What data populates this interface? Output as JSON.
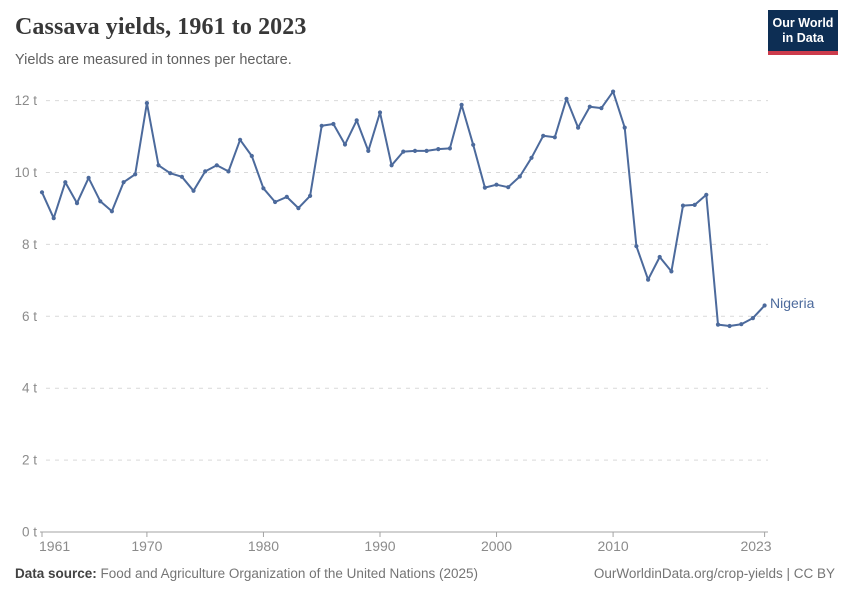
{
  "header": {
    "title": "Cassava yields, 1961 to 2023",
    "subtitle": "Yields are measured in tonnes per hectare.",
    "logo": {
      "line1": "Our World",
      "line2": "in Data"
    }
  },
  "chart_data": {
    "type": "line",
    "title": "Cassava yields, 1961 to 2023",
    "ylabel": "tonnes per hectare",
    "xlabel": "",
    "xlim": [
      1961,
      2023
    ],
    "ylim": [
      0,
      12
    ],
    "grid": "horizontal-dashed",
    "legend_position": "end-of-line-label",
    "xticks": [
      {
        "value": 1961,
        "label": "1961"
      },
      {
        "value": 1970,
        "label": "1970"
      },
      {
        "value": 1980,
        "label": "1980"
      },
      {
        "value": 1990,
        "label": "1990"
      },
      {
        "value": 2000,
        "label": "2000"
      },
      {
        "value": 2010,
        "label": "2010"
      },
      {
        "value": 2023,
        "label": "2023"
      }
    ],
    "yticks": [
      {
        "value": 0,
        "label": "0 t"
      },
      {
        "value": 2,
        "label": "2 t"
      },
      {
        "value": 4,
        "label": "4 t"
      },
      {
        "value": 6,
        "label": "6 t"
      },
      {
        "value": 8,
        "label": "8 t"
      },
      {
        "value": 10,
        "label": "10 t"
      },
      {
        "value": 12,
        "label": "12 t"
      }
    ],
    "series": [
      {
        "name": "Nigeria",
        "color": "#4C6A9C",
        "x": [
          1961,
          1962,
          1963,
          1964,
          1965,
          1966,
          1967,
          1968,
          1969,
          1970,
          1971,
          1972,
          1973,
          1974,
          1975,
          1976,
          1977,
          1978,
          1979,
          1980,
          1981,
          1982,
          1983,
          1984,
          1985,
          1986,
          1987,
          1988,
          1989,
          1990,
          1991,
          1992,
          1993,
          1994,
          1995,
          1996,
          1997,
          1998,
          1999,
          2000,
          2001,
          2002,
          2003,
          2004,
          2005,
          2006,
          2007,
          2008,
          2009,
          2010,
          2011,
          2012,
          2013,
          2014,
          2015,
          2016,
          2017,
          2018,
          2019,
          2020,
          2021,
          2022,
          2023
        ],
        "values": [
          9.45,
          8.73,
          9.73,
          9.15,
          9.85,
          9.2,
          8.92,
          9.73,
          9.95,
          11.93,
          10.2,
          9.98,
          9.88,
          9.49,
          10.03,
          10.2,
          10.03,
          10.91,
          10.46,
          9.56,
          9.18,
          9.32,
          9.01,
          9.35,
          11.3,
          11.35,
          10.78,
          11.45,
          10.6,
          11.67,
          10.2,
          10.58,
          10.6,
          10.6,
          10.65,
          10.67,
          11.88,
          10.77,
          9.58,
          9.66,
          9.59,
          9.89,
          10.41,
          11.02,
          10.98,
          12.05,
          11.25,
          11.83,
          11.79,
          12.25,
          11.25,
          7.95,
          7.02,
          7.65,
          7.25,
          9.08,
          9.1,
          9.38,
          5.77,
          5.73,
          5.78,
          5.95,
          6.3
        ]
      }
    ]
  },
  "colors": {
    "line": "#4C6A9C",
    "grid": "#d9d9d9",
    "axis": "#a3a3a3",
    "tick_text": "#8b8b8b",
    "logo_bg": "#0d2e54",
    "logo_stripe": "#cc3b4c"
  },
  "footer": {
    "source_label": "Data source:",
    "source_text": " Food and Agriculture Organization of the United Nations (2025)",
    "link_text": "OurWorldinData.org/crop-yields",
    "separator": " | ",
    "license_text": "CC BY"
  }
}
